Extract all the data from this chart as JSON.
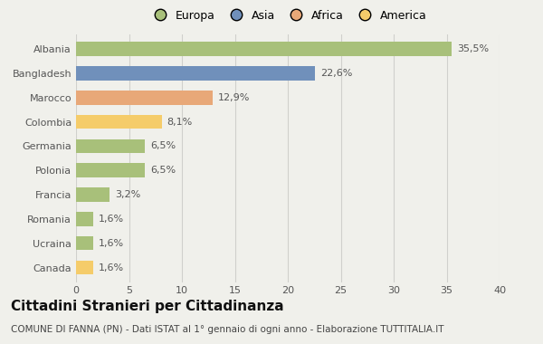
{
  "categories": [
    "Albania",
    "Bangladesh",
    "Marocco",
    "Colombia",
    "Germania",
    "Polonia",
    "Francia",
    "Romania",
    "Ucraina",
    "Canada"
  ],
  "values": [
    35.5,
    22.6,
    12.9,
    8.1,
    6.5,
    6.5,
    3.2,
    1.6,
    1.6,
    1.6
  ],
  "labels": [
    "35,5%",
    "22,6%",
    "12,9%",
    "8,1%",
    "6,5%",
    "6,5%",
    "3,2%",
    "1,6%",
    "1,6%",
    "1,6%"
  ],
  "colors": [
    "#a8c07a",
    "#7090bb",
    "#e8a878",
    "#f5cc6a",
    "#a8c07a",
    "#a8c07a",
    "#a8c07a",
    "#a8c07a",
    "#a8c07a",
    "#f5cc6a"
  ],
  "legend_labels": [
    "Europa",
    "Asia",
    "Africa",
    "America"
  ],
  "legend_colors": [
    "#a8c07a",
    "#7090bb",
    "#e8a878",
    "#f5cc6a"
  ],
  "title": "Cittadini Stranieri per Cittadinanza",
  "subtitle": "COMUNE DI FANNA (PN) - Dati ISTAT al 1° gennaio di ogni anno - Elaborazione TUTTITALIA.IT",
  "xlim": [
    0,
    40
  ],
  "xticks": [
    0,
    5,
    10,
    15,
    20,
    25,
    30,
    35,
    40
  ],
  "background_color": "#f0f0eb",
  "grid_color": "#d0d0cc",
  "title_fontsize": 11,
  "subtitle_fontsize": 7.5,
  "label_fontsize": 8,
  "tick_fontsize": 8,
  "legend_fontsize": 9
}
